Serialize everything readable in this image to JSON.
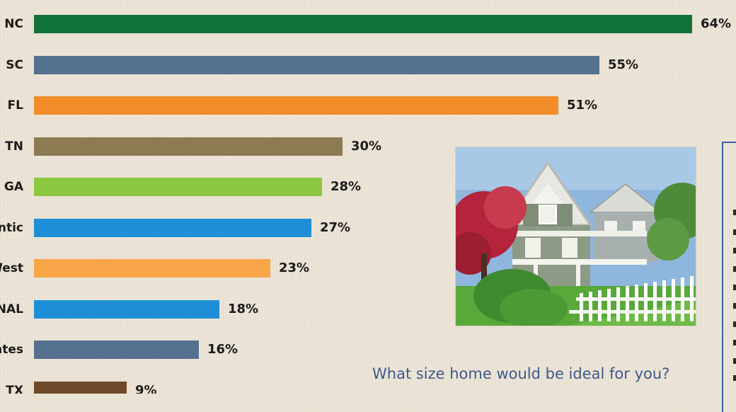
{
  "chart_data": {
    "type": "bar",
    "orientation": "horizontal",
    "categories": [
      "NC",
      "SC",
      "FL",
      "TN",
      "GA",
      "antic",
      "West",
      "NAL",
      "ates",
      "TX"
    ],
    "values": [
      64,
      55,
      51,
      30,
      28,
      27,
      23,
      18,
      16,
      9
    ],
    "value_labels": [
      "64%",
      "55%",
      "51%",
      "30%",
      "28%",
      "27%",
      "23%",
      "18%",
      "16%",
      "9%"
    ],
    "colors": [
      "#127339",
      "#56708f",
      "#f28c28",
      "#8c7a52",
      "#8cc83f",
      "#1e8fd6",
      "#f9a64a",
      "#1e8fd6",
      "#56708f",
      "#6e4a2a"
    ],
    "xlim": [
      0,
      64
    ]
  },
  "caption": {
    "question": "What size home would be ideal for you?"
  },
  "photo": {
    "subject": "house-photo"
  }
}
